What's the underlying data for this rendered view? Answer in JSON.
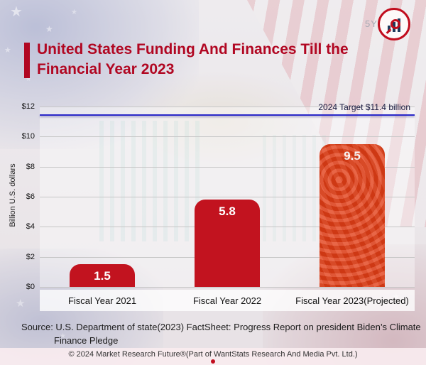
{
  "meta": {
    "watermark": "5Y"
  },
  "header": {
    "title": "United States Funding And Finances Till the Financial Year 2023"
  },
  "chart_data": {
    "type": "bar",
    "title": "United States Funding And Finances Till the Financial Year 2023",
    "categories": [
      "Fiscal Year 2021",
      "Fiscal Year 2022",
      "Fiscal Year 2023(Projected)"
    ],
    "values": [
      1.5,
      5.8,
      9.5
    ],
    "xlabel": "",
    "ylabel": "Billion U.S. dollars",
    "ylim": [
      0,
      12
    ],
    "yticks": [
      "$0",
      "$2",
      "$4",
      "$6",
      "$8",
      "$10",
      "$12"
    ],
    "grid": true,
    "legend": "none",
    "target_line": {
      "value": 11.4,
      "label": "2024 Target $11.4 billion",
      "color": "#2a28c8"
    },
    "bar_colors": [
      "#c2131f",
      "#c2131f",
      "#e23f17"
    ]
  },
  "source": {
    "text": "Source: U.S. Department of state(2023) FactSheet: Progress Report on president Biden’s Climate Finance Pledge"
  },
  "footer": {
    "copyright": "© 2024 Market Research Future®(Part of WantStats Research And Media Pvt. Ltd.)"
  }
}
